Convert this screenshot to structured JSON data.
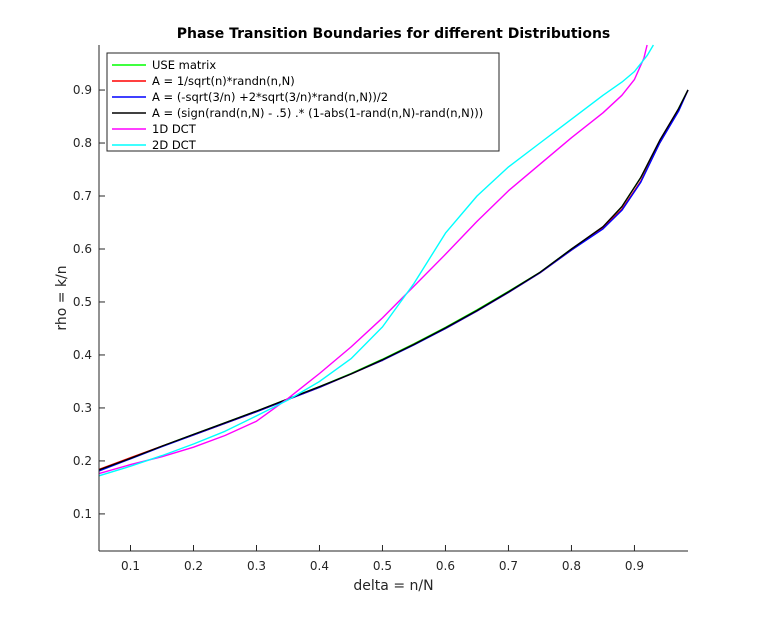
{
  "chart_data": {
    "type": "line",
    "title": "Phase Transition Boundaries for different Distributions",
    "xlabel": "delta = n/N",
    "ylabel": "rho = k/n",
    "xlim": [
      0.05,
      0.985
    ],
    "ylim": [
      0.03,
      0.985
    ],
    "xticks": [
      0.1,
      0.2,
      0.3,
      0.4,
      0.5,
      0.6,
      0.7,
      0.8,
      0.9
    ],
    "yticks": [
      0.1,
      0.2,
      0.3,
      0.4,
      0.5,
      0.6,
      0.7,
      0.8,
      0.9
    ],
    "xtick_labels": [
      "0.1",
      "0.2",
      "0.3",
      "0.4",
      "0.5",
      "0.6",
      "0.7",
      "0.8",
      "0.9"
    ],
    "ytick_labels": [
      "0.1",
      "0.2",
      "0.3",
      "0.4",
      "0.5",
      "0.6",
      "0.7",
      "0.8",
      "0.9"
    ],
    "grid": false,
    "legend_position": "top-left",
    "series": [
      {
        "name": "USE matrix",
        "color": "#00ff00",
        "x": [
          0.05,
          0.1,
          0.15,
          0.2,
          0.25,
          0.3,
          0.35,
          0.4,
          0.45,
          0.5,
          0.55,
          0.6,
          0.65,
          0.7,
          0.75,
          0.8,
          0.85,
          0.88,
          0.91,
          0.94,
          0.97,
          0.985
        ],
        "y": [
          0.182,
          0.205,
          0.228,
          0.25,
          0.272,
          0.294,
          0.317,
          0.34,
          0.365,
          0.392,
          0.421,
          0.452,
          0.485,
          0.52,
          0.556,
          0.6,
          0.64,
          0.68,
          0.735,
          0.8,
          0.865,
          0.9
        ]
      },
      {
        "name": "A  = 1/sqrt(n)*randn(n,N)",
        "color": "#ff0000",
        "x": [
          0.05,
          0.1,
          0.15,
          0.2,
          0.25,
          0.3,
          0.35,
          0.4,
          0.45,
          0.5,
          0.55,
          0.6,
          0.65,
          0.7,
          0.75,
          0.8,
          0.85,
          0.88,
          0.91,
          0.94,
          0.97,
          0.985
        ],
        "y": [
          0.184,
          0.206,
          0.228,
          0.249,
          0.271,
          0.293,
          0.316,
          0.339,
          0.364,
          0.39,
          0.42,
          0.45,
          0.483,
          0.518,
          0.555,
          0.598,
          0.64,
          0.675,
          0.728,
          0.8,
          0.862,
          0.9
        ]
      },
      {
        "name": "A = (-sqrt(3/n) +2*sqrt(3/n)*rand(n,N))/2",
        "color": "#0000ff",
        "x": [
          0.05,
          0.1,
          0.15,
          0.2,
          0.25,
          0.3,
          0.35,
          0.4,
          0.45,
          0.5,
          0.55,
          0.6,
          0.65,
          0.7,
          0.75,
          0.8,
          0.85,
          0.88,
          0.91,
          0.94,
          0.97,
          0.985
        ],
        "y": [
          0.181,
          0.204,
          0.227,
          0.249,
          0.271,
          0.293,
          0.316,
          0.339,
          0.364,
          0.39,
          0.419,
          0.45,
          0.483,
          0.518,
          0.555,
          0.598,
          0.638,
          0.673,
          0.726,
          0.8,
          0.86,
          0.9
        ]
      },
      {
        "name": "A = (sign(rand(n,N) - .5) .* (1-abs(1-rand(n,N)-rand(n,N)))",
        "color": "#000000",
        "x": [
          0.05,
          0.1,
          0.15,
          0.2,
          0.25,
          0.3,
          0.35,
          0.4,
          0.45,
          0.5,
          0.55,
          0.6,
          0.65,
          0.7,
          0.75,
          0.8,
          0.85,
          0.88,
          0.91,
          0.94,
          0.97,
          0.985
        ],
        "y": [
          0.183,
          0.205,
          0.228,
          0.25,
          0.272,
          0.294,
          0.317,
          0.34,
          0.364,
          0.391,
          0.42,
          0.451,
          0.484,
          0.519,
          0.556,
          0.6,
          0.642,
          0.68,
          0.735,
          0.805,
          0.865,
          0.9
        ]
      },
      {
        "name": "1D DCT",
        "color": "#ff00ff",
        "x": [
          0.05,
          0.1,
          0.15,
          0.2,
          0.25,
          0.3,
          0.35,
          0.4,
          0.45,
          0.5,
          0.55,
          0.6,
          0.65,
          0.7,
          0.75,
          0.8,
          0.85,
          0.88,
          0.9,
          0.915,
          0.92
        ],
        "y": [
          0.176,
          0.193,
          0.208,
          0.226,
          0.248,
          0.275,
          0.318,
          0.365,
          0.415,
          0.47,
          0.53,
          0.59,
          0.652,
          0.71,
          0.76,
          0.81,
          0.857,
          0.89,
          0.92,
          0.96,
          0.985
        ]
      },
      {
        "name": "2D DCT",
        "color": "#00ffff",
        "x": [
          0.05,
          0.1,
          0.15,
          0.2,
          0.25,
          0.3,
          0.35,
          0.4,
          0.45,
          0.5,
          0.55,
          0.6,
          0.65,
          0.7,
          0.75,
          0.8,
          0.85,
          0.88,
          0.9,
          0.92,
          0.93
        ],
        "y": [
          0.172,
          0.19,
          0.21,
          0.232,
          0.256,
          0.285,
          0.315,
          0.35,
          0.393,
          0.453,
          0.535,
          0.63,
          0.7,
          0.755,
          0.8,
          0.845,
          0.89,
          0.915,
          0.935,
          0.965,
          0.985
        ]
      }
    ]
  }
}
